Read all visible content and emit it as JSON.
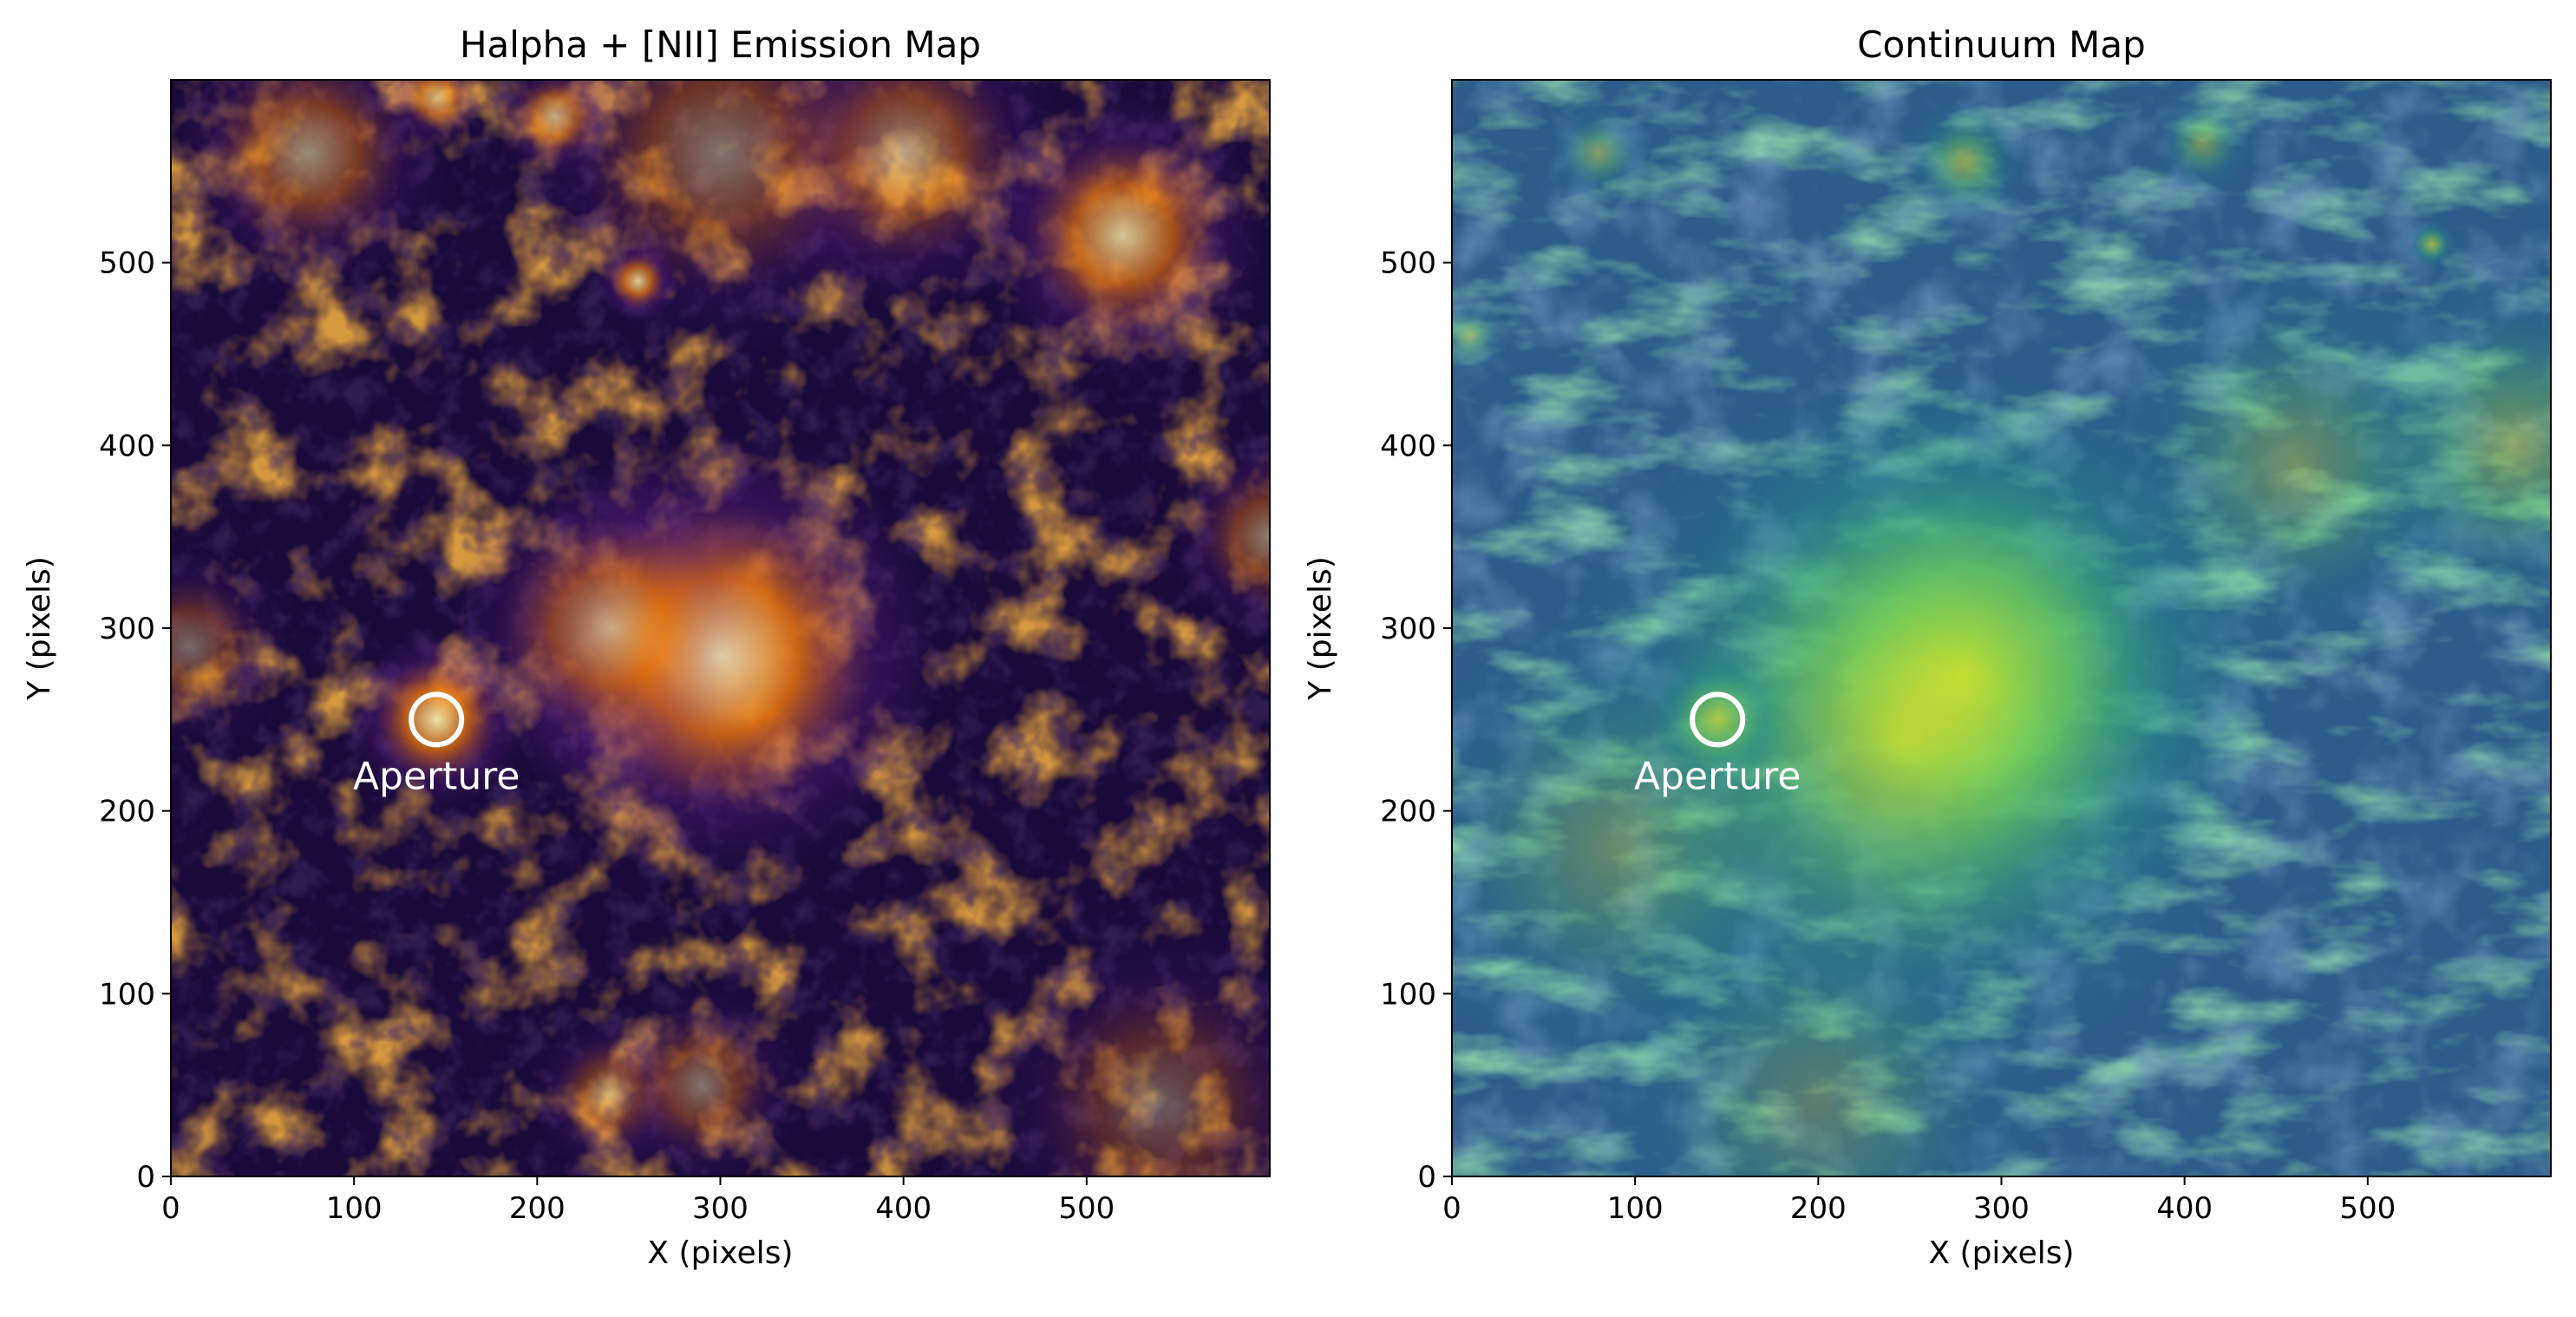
{
  "chart_data": [
    {
      "type": "heatmap",
      "title": "Halpha + [NII] Emission Map",
      "xlabel": "X (pixels)",
      "ylabel": "Y (pixels)",
      "xlim": [
        0,
        600
      ],
      "ylim": [
        0,
        600
      ],
      "xticks": [
        0,
        100,
        200,
        300,
        400,
        500
      ],
      "yticks": [
        0,
        100,
        200,
        300,
        400,
        500
      ],
      "colormap": "inferno",
      "colors": {
        "low": "#1a0a3a",
        "mid": "#5c1e86",
        "high": "#e8720c",
        "peak": "#fff6b0"
      },
      "features": [
        {
          "x": 300,
          "y": 285,
          "r": 55,
          "strength": 1.0
        },
        {
          "x": 240,
          "y": 300,
          "r": 40,
          "strength": 0.6
        },
        {
          "x": 145,
          "y": 250,
          "r": 22,
          "strength": 0.9
        },
        {
          "x": 520,
          "y": 515,
          "r": 35,
          "strength": 0.8
        },
        {
          "x": 400,
          "y": 560,
          "r": 40,
          "strength": 0.55
        },
        {
          "x": 300,
          "y": 560,
          "r": 50,
          "strength": 0.45
        },
        {
          "x": 75,
          "y": 560,
          "r": 35,
          "strength": 0.55
        },
        {
          "x": 255,
          "y": 490,
          "r": 10,
          "strength": 0.8
        },
        {
          "x": 600,
          "y": 350,
          "r": 25,
          "strength": 0.5
        },
        {
          "x": 240,
          "y": 45,
          "r": 20,
          "strength": 0.45
        },
        {
          "x": 290,
          "y": 50,
          "r": 25,
          "strength": 0.45
        },
        {
          "x": 540,
          "y": 40,
          "r": 45,
          "strength": 0.35
        },
        {
          "x": 10,
          "y": 290,
          "r": 25,
          "strength": 0.4
        },
        {
          "x": 210,
          "y": 580,
          "r": 15,
          "strength": 0.6
        },
        {
          "x": 145,
          "y": 590,
          "r": 12,
          "strength": 0.6
        }
      ],
      "aperture": {
        "x": 145,
        "y": 250,
        "label": "Aperture"
      }
    },
    {
      "type": "heatmap",
      "title": "Continuum Map",
      "xlabel": "X (pixels)",
      "ylabel": "Y (pixels)",
      "xlim": [
        0,
        600
      ],
      "ylim": [
        0,
        600
      ],
      "xticks": [
        0,
        100,
        200,
        300,
        400,
        500
      ],
      "yticks": [
        0,
        100,
        200,
        300,
        400,
        500
      ],
      "colormap": "viridis",
      "colors": {
        "low": "#2c5c8a",
        "mid": "#22908c",
        "high": "#6ccd5a",
        "peak": "#f2e51c"
      },
      "features": [
        {
          "x": 280,
          "y": 275,
          "r": 75,
          "strength": 1.0
        },
        {
          "x": 245,
          "y": 240,
          "r": 90,
          "strength": 0.55
        },
        {
          "x": 145,
          "y": 250,
          "r": 18,
          "strength": 0.7
        },
        {
          "x": 580,
          "y": 400,
          "r": 45,
          "strength": 0.4
        },
        {
          "x": 460,
          "y": 390,
          "r": 50,
          "strength": 0.35
        },
        {
          "x": 90,
          "y": 180,
          "r": 60,
          "strength": 0.3
        },
        {
          "x": 280,
          "y": 555,
          "r": 15,
          "strength": 0.5
        },
        {
          "x": 410,
          "y": 565,
          "r": 12,
          "strength": 0.4
        },
        {
          "x": 80,
          "y": 560,
          "r": 12,
          "strength": 0.4
        },
        {
          "x": 535,
          "y": 510,
          "r": 6,
          "strength": 0.6
        },
        {
          "x": 10,
          "y": 460,
          "r": 8,
          "strength": 0.4
        },
        {
          "x": 200,
          "y": 40,
          "r": 60,
          "strength": 0.25
        }
      ],
      "aperture": {
        "x": 145,
        "y": 250,
        "label": "Aperture"
      }
    }
  ]
}
